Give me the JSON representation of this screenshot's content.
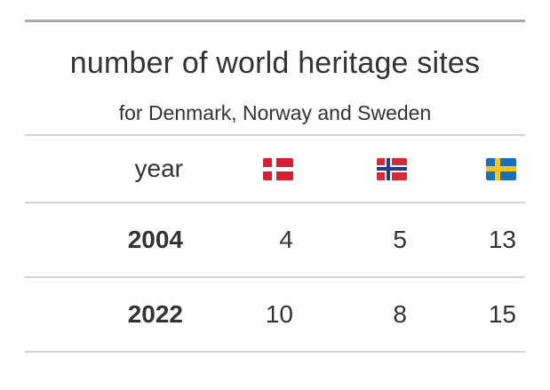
{
  "chart_data": {
    "type": "table",
    "title": "number of world heritage sites",
    "subtitle": "for Denmark, Norway and Sweden",
    "columns": [
      {
        "label": "year"
      },
      {
        "icon": "denmark-flag-icon",
        "colors": {
          "field": "#d81e35",
          "cross": "#ffffff"
        }
      },
      {
        "icon": "norway-flag-icon",
        "colors": {
          "field": "#d32a3c",
          "outer_cross": "#ffffff",
          "inner_cross": "#1f3e8c"
        }
      },
      {
        "icon": "sweden-flag-icon",
        "colors": {
          "field": "#1b6fb8",
          "cross": "#f7c51c"
        }
      }
    ],
    "rows": [
      {
        "year": "2004",
        "values": [
          "4",
          "5",
          "13"
        ]
      },
      {
        "year": "2022",
        "values": [
          "10",
          "8",
          "15"
        ]
      }
    ]
  }
}
